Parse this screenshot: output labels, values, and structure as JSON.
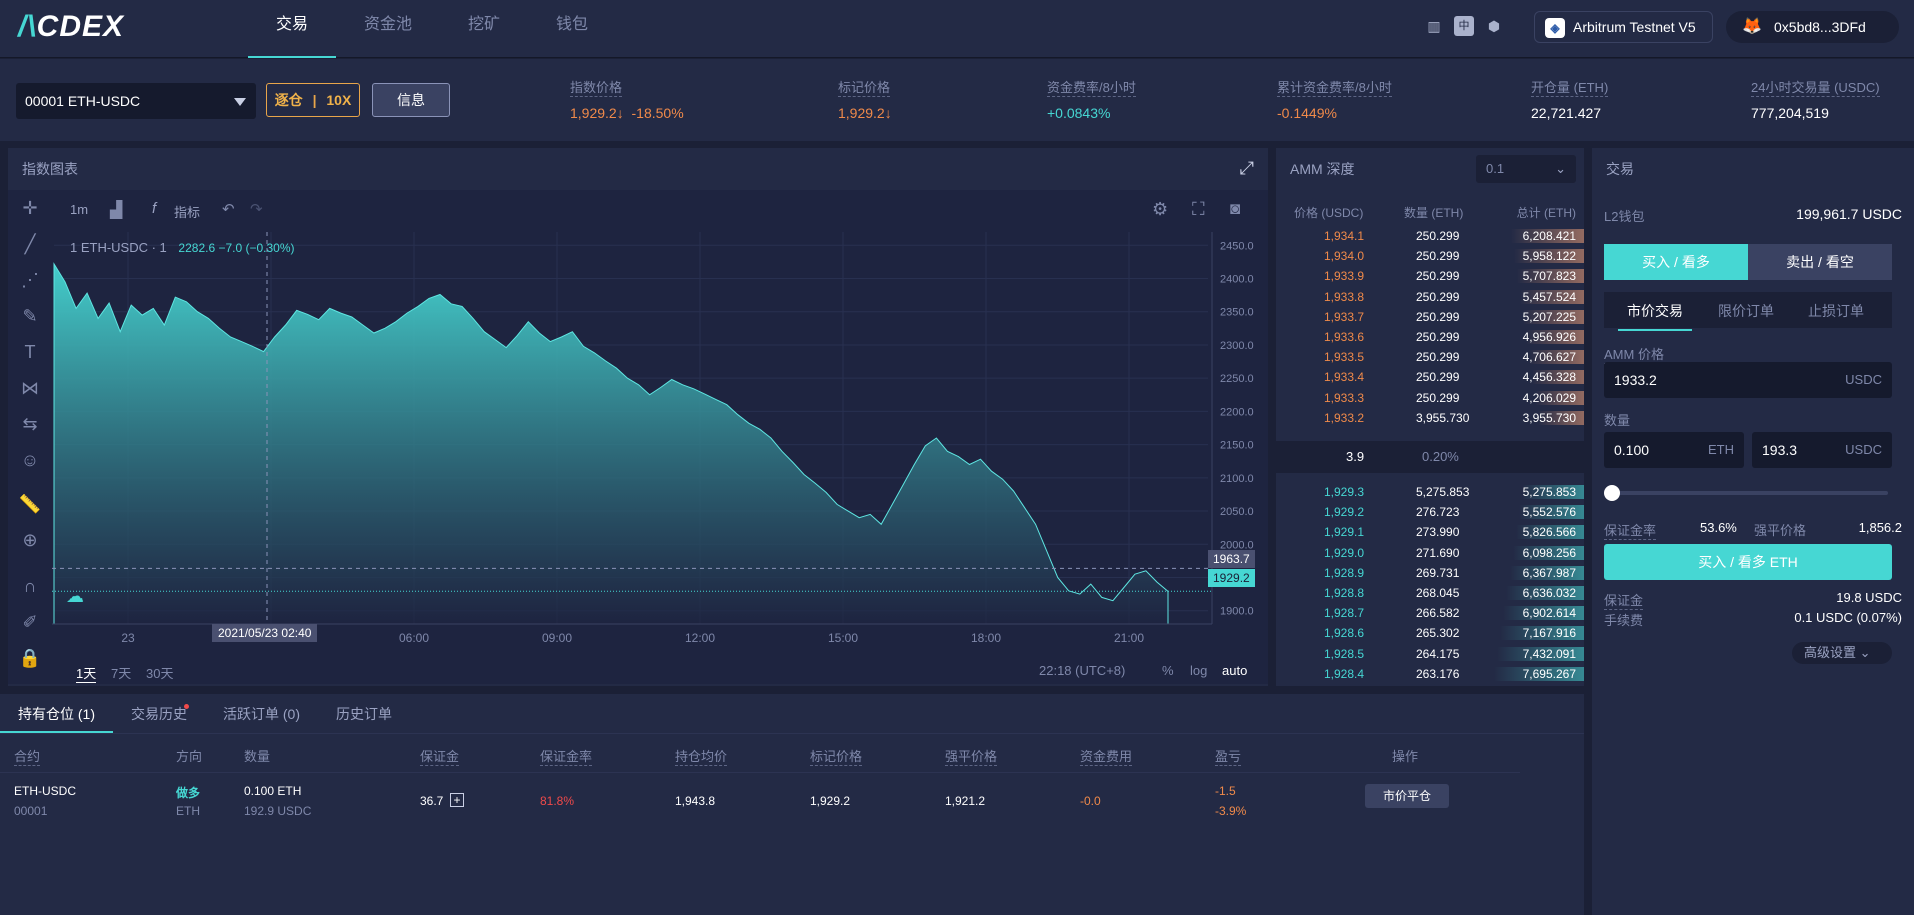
{
  "header": {
    "logo_prefix": "/\\",
    "logo_text": "CDEX",
    "nav": [
      "交易",
      "资金池",
      "挖矿",
      "钱包"
    ],
    "network": "Arbitrum Testnet V5",
    "wallet": "0x5bd8...3DFd"
  },
  "market": {
    "symbol": "00001 ETH-USDC",
    "leverage_mode": "逐仓",
    "leverage": "10X",
    "info_button": "信息",
    "stats": [
      {
        "label": "指数价格",
        "value": "1,929.2↓",
        "extra": "-18.50%",
        "color": "#f08a4a"
      },
      {
        "label": "标记价格",
        "value": "1,929.2↓",
        "extra": "",
        "color": "#f08a4a"
      },
      {
        "label": "资金费率/8小时",
        "value": "+0.0843%",
        "extra": "",
        "color": "#46d7d3"
      },
      {
        "label": "累计资金费率/8小时",
        "value": "-0.1449%",
        "extra": "",
        "color": "#f08a4a"
      },
      {
        "label": "开仓量 (ETH)",
        "value": "22,721.427",
        "extra": "",
        "color": "#ffffff"
      },
      {
        "label": "24小时交易量 (USDC)",
        "value": "777,204,519",
        "extra": "",
        "color": "#ffffff"
      }
    ]
  },
  "chart_panel": {
    "title": "指数图表",
    "interval": "1m",
    "indicator_label": "指标",
    "legend": "1 ETH-USDC · 1",
    "legend_values": "2282.6  −7.0 (−0.30%)",
    "range_tabs": [
      "1天",
      "7天",
      "30天"
    ],
    "clock": "22:18 (UTC+8)",
    "scale_buttons": [
      "%",
      "log",
      "auto"
    ],
    "cross_time": "2021/05/23   02:40",
    "cross_price": "1963.7",
    "last_price": "1929.2"
  },
  "chart_data": {
    "type": "area",
    "x_ticks": [
      "23",
      "03:00",
      "06:00",
      "09:00",
      "12:00",
      "15:00",
      "18:00",
      "21:00"
    ],
    "y_ticks": [
      "2450.0",
      "2400.0",
      "2350.0",
      "2300.0",
      "2250.0",
      "2200.0",
      "2150.0",
      "2100.0",
      "2050.0",
      "2000.0",
      "1950.0",
      "1900.0"
    ],
    "ylim": [
      1880,
      2470
    ],
    "series": [
      {
        "values": [
          2422,
          2395,
          2355,
          2378,
          2340,
          2363,
          2320,
          2360,
          2345,
          2355,
          2330,
          2372,
          2365,
          2350,
          2340,
          2325,
          2312,
          2305,
          2298,
          2290,
          2312,
          2330,
          2352,
          2346,
          2338,
          2355,
          2348,
          2342,
          2330,
          2318,
          2325,
          2335,
          2348,
          2358,
          2370,
          2376,
          2362,
          2358,
          2340,
          2320,
          2308,
          2296,
          2314,
          2335,
          2318,
          2305,
          2312,
          2320,
          2298,
          2288,
          2276,
          2265,
          2250,
          2240,
          2225,
          2236,
          2248,
          2240,
          2234,
          2226,
          2218,
          2210,
          2195,
          2182,
          2173,
          2160,
          2140,
          2123,
          2105,
          2092,
          2078,
          2060,
          2050,
          2040,
          2045,
          2030,
          2060,
          2090,
          2120,
          2148,
          2160,
          2140,
          2132,
          2120,
          2128,
          2110,
          2098,
          2080,
          2055,
          2030,
          1990,
          1950,
          1930,
          1925,
          1940,
          1920,
          1915,
          1935,
          1955,
          1960,
          1943,
          1929
        ]
      }
    ]
  },
  "orderbook": {
    "title": "AMM 深度",
    "precision": "0.1",
    "headers": [
      "价格 (USDC)",
      "数量 (ETH)",
      "总计 (ETH)"
    ],
    "asks": [
      [
        "1,934.1",
        "250.299",
        "6,208.421"
      ],
      [
        "1,934.0",
        "250.299",
        "5,958.122"
      ],
      [
        "1,933.9",
        "250.299",
        "5,707.823"
      ],
      [
        "1,933.8",
        "250.299",
        "5,457.524"
      ],
      [
        "1,933.7",
        "250.299",
        "5,207.225"
      ],
      [
        "1,933.6",
        "250.299",
        "4,956.926"
      ],
      [
        "1,933.5",
        "250.299",
        "4,706.627"
      ],
      [
        "1,933.4",
        "250.299",
        "4,456.328"
      ],
      [
        "1,933.3",
        "250.299",
        "4,206.029"
      ],
      [
        "1,933.2",
        "3,955.730",
        "3,955.730"
      ]
    ],
    "spread": "3.9",
    "spread_pct": "0.20%",
    "bids": [
      [
        "1,929.3",
        "5,275.853",
        "5,275.853"
      ],
      [
        "1,929.2",
        "276.723",
        "5,552.576"
      ],
      [
        "1,929.1",
        "273.990",
        "5,826.566"
      ],
      [
        "1,929.0",
        "271.690",
        "6,098.256"
      ],
      [
        "1,928.9",
        "269.731",
        "6,367.987"
      ],
      [
        "1,928.8",
        "268.045",
        "6,636.032"
      ],
      [
        "1,928.7",
        "266.582",
        "6,902.614"
      ],
      [
        "1,928.6",
        "265.302",
        "7,167.916"
      ],
      [
        "1,928.5",
        "264.175",
        "7,432.091"
      ],
      [
        "1,928.4",
        "263.176",
        "7,695.267"
      ]
    ]
  },
  "trade": {
    "title": "交易",
    "l2_label": "L2钱包",
    "l2_value": "199,961.7 USDC",
    "buy_tab": "买入 / 看多",
    "sell_tab": "卖出 / 看空",
    "order_types": [
      "市价交易",
      "限价订单",
      "止损订单"
    ],
    "amm_price_label": "AMM 价格",
    "amm_price": "1933.2",
    "usdc": "USDC",
    "eth": "ETH",
    "qty_label": "数量",
    "qty_eth": "0.100",
    "qty_usdc": "193.3",
    "margin_rate_label": "保证金率",
    "margin_rate": "53.6%",
    "liq_label": "强平价格",
    "liq_price": "1,856.2",
    "submit": "买入 / 看多 ETH",
    "margin_label": "保证金",
    "margin": "19.8 USDC",
    "fee_label": "手续费",
    "fee": "0.1 USDC (0.07%)",
    "advanced": "高级设置"
  },
  "positions": {
    "tabs": [
      "持有仓位 (1)",
      "交易历史",
      "活跃订单 (0)",
      "历史订单"
    ],
    "headers": [
      "合约",
      "方向",
      "数量",
      "保证金",
      "保证金率",
      "持仓均价",
      "标记价格",
      "强平价格",
      "资金费用",
      "盈亏",
      "操作"
    ],
    "row": {
      "contract": "ETH-USDC",
      "contract_id": "00001",
      "side": "做多",
      "side_unit": "ETH",
      "qty": "0.100 ETH",
      "qty_usdc": "192.9 USDC",
      "margin": "36.7",
      "margin_rate": "81.8%",
      "avg_price": "1,943.8",
      "mark_price": "1,929.2",
      "liq_price": "1,921.2",
      "funding": "-0.0",
      "pnl": "-1.5",
      "pnl_pct": "-3.9%",
      "action": "市价平仓"
    }
  }
}
